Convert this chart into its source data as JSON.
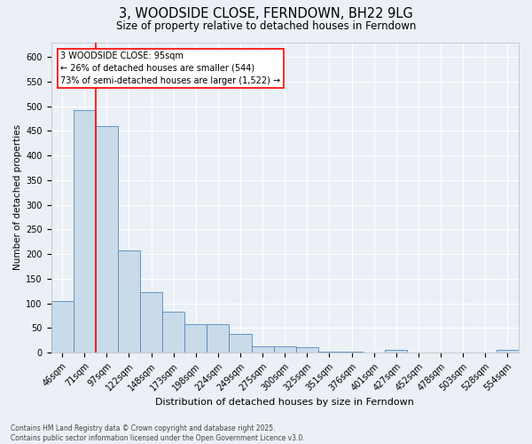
{
  "title1": "3, WOODSIDE CLOSE, FERNDOWN, BH22 9LG",
  "title2": "Size of property relative to detached houses in Ferndown",
  "xlabel": "Distribution of detached houses by size in Ferndown",
  "ylabel": "Number of detached properties",
  "categories": [
    "46sqm",
    "71sqm",
    "97sqm",
    "122sqm",
    "148sqm",
    "173sqm",
    "198sqm",
    "224sqm",
    "249sqm",
    "275sqm",
    "300sqm",
    "325sqm",
    "351sqm",
    "376sqm",
    "401sqm",
    "427sqm",
    "452sqm",
    "478sqm",
    "503sqm",
    "528sqm",
    "554sqm"
  ],
  "values": [
    105,
    493,
    460,
    208,
    123,
    83,
    58,
    58,
    38,
    13,
    13,
    11,
    3,
    2,
    1,
    5,
    1,
    0,
    1,
    0,
    6
  ],
  "bar_color": "#c9daea",
  "bar_edge_color": "#5588bb",
  "ref_line_color": "red",
  "annotation_text": "3 WOODSIDE CLOSE: 95sqm\n← 26% of detached houses are smaller (544)\n73% of semi-detached houses are larger (1,522) →",
  "annotation_box_color": "white",
  "annotation_box_edge": "red",
  "footer": "Contains HM Land Registry data © Crown copyright and database right 2025.\nContains public sector information licensed under the Open Government Licence v3.0.",
  "yticks": [
    0,
    50,
    100,
    150,
    200,
    250,
    300,
    350,
    400,
    450,
    500,
    550,
    600
  ],
  "ylim": [
    0,
    630
  ],
  "bg_color": "#eaf0f6",
  "grid_color": "white",
  "title1_fontsize": 10.5,
  "title2_fontsize": 8.5,
  "xlabel_fontsize": 8,
  "ylabel_fontsize": 7.5,
  "tick_fontsize": 7,
  "footer_fontsize": 5.5
}
